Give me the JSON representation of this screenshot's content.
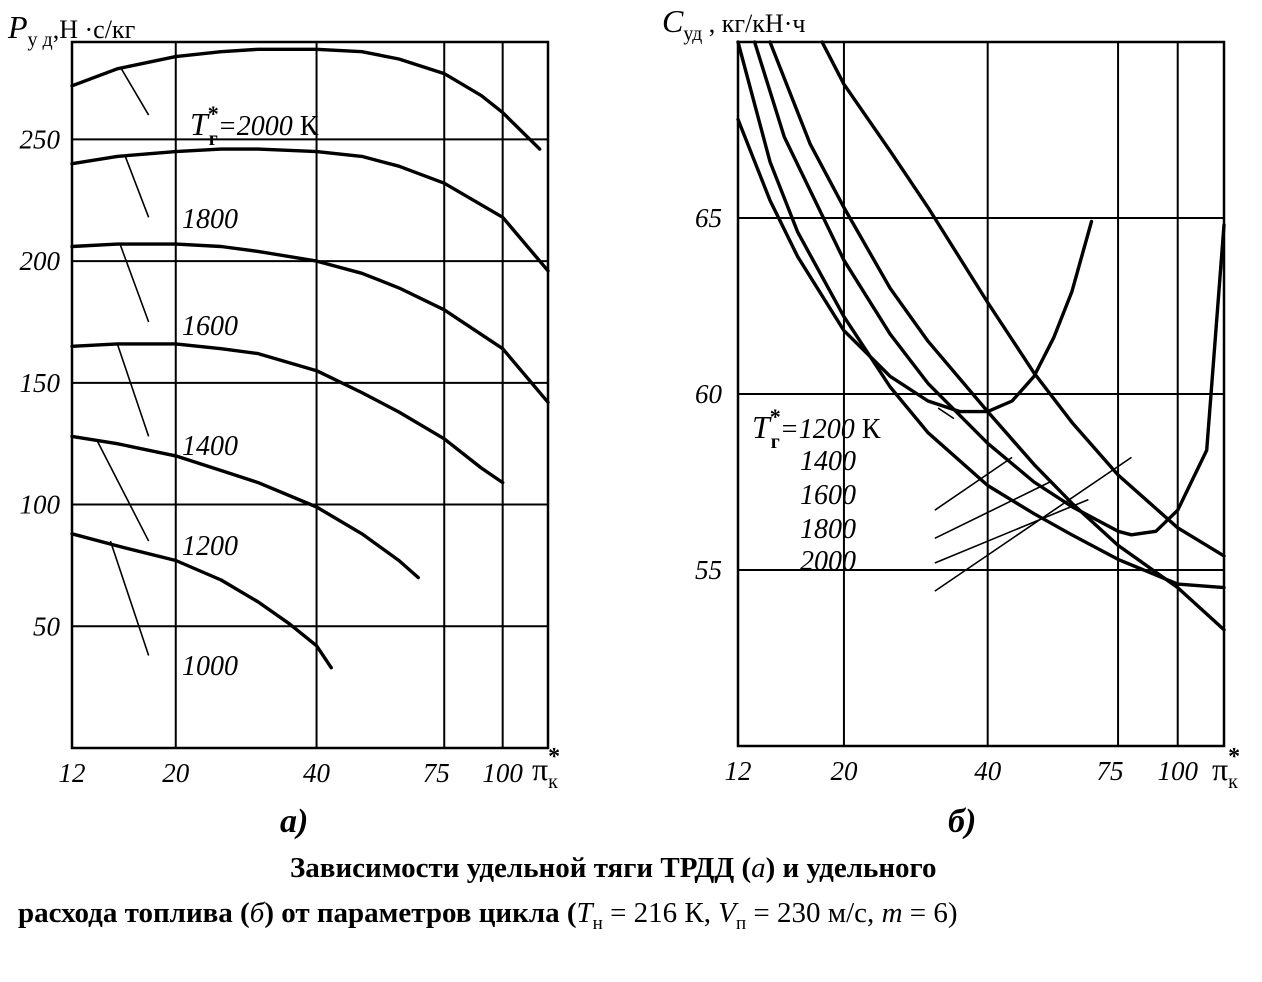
{
  "chart_data": [
    {
      "type": "line",
      "panel_label": "а)",
      "ylabel": {
        "symbol": "P",
        "subscript": "у д",
        "unit": ",Н ·с/кг"
      },
      "xlabel": {
        "symbol": "π",
        "superscript": "*",
        "subscript": "к"
      },
      "xscale": "log",
      "xlim": [
        12,
        125
      ],
      "ylim": [
        0,
        290
      ],
      "x_ticks": [
        12,
        20,
        40,
        75,
        100
      ],
      "x_tick_labels": [
        "12",
        "20",
        "40",
        "75",
        "100"
      ],
      "y_ticks": [
        50,
        100,
        150,
        200,
        250
      ],
      "y_tick_labels": [
        "50",
        "100",
        "150",
        "200",
        "250"
      ],
      "grid": true,
      "series": [
        {
          "name": "2000",
          "label_prefix": "T",
          "label_sub": "г",
          "label_sup": "*",
          "label_text": "=2000",
          "label_unit": " К",
          "x": [
            12,
            15,
            20,
            25,
            30,
            40,
            50,
            60,
            75,
            90,
            100,
            120
          ],
          "y": [
            272,
            279,
            284,
            286,
            287,
            287,
            286,
            283,
            277,
            268,
            261,
            246
          ]
        },
        {
          "name": "1800",
          "label_text": "1800",
          "x": [
            12,
            15,
            20,
            25,
            30,
            40,
            50,
            60,
            75,
            100,
            125
          ],
          "y": [
            240,
            243,
            245,
            246,
            246,
            245,
            243,
            239,
            232,
            218,
            196
          ]
        },
        {
          "name": "1600",
          "label_text": "1600",
          "x": [
            12,
            15,
            20,
            25,
            30,
            40,
            50,
            60,
            75,
            100,
            125
          ],
          "y": [
            206,
            207,
            207,
            206,
            204,
            200,
            195,
            189,
            180,
            164,
            142
          ]
        },
        {
          "name": "1400",
          "label_text": "1400",
          "x": [
            12,
            15,
            20,
            25,
            30,
            40,
            50,
            60,
            75,
            90,
            100
          ],
          "y": [
            165,
            166,
            166,
            164,
            162,
            155,
            146,
            138,
            127,
            115,
            109
          ]
        },
        {
          "name": "1200",
          "label_text": "1200",
          "x": [
            12,
            15,
            20,
            25,
            30,
            40,
            50,
            60,
            66
          ],
          "y": [
            128,
            125,
            120,
            114,
            109,
            99,
            88,
            77,
            70
          ]
        },
        {
          "name": "1000",
          "label_text": "1000",
          "x": [
            12,
            15,
            20,
            25,
            30,
            35,
            40,
            43
          ],
          "y": [
            88,
            83,
            77,
            69,
            60,
            51,
            42,
            33
          ]
        }
      ],
      "leaders": [
        {
          "series": "2000",
          "from": [
            15.3,
            279
          ],
          "to": [
            17.5,
            260
          ]
        },
        {
          "series": "1800",
          "from": [
            15.6,
            243
          ],
          "to": [
            17.5,
            218
          ]
        },
        {
          "series": "1600",
          "from": [
            15.2,
            207
          ],
          "to": [
            17.5,
            175
          ]
        },
        {
          "series": "1400",
          "from": [
            15.0,
            166
          ],
          "to": [
            17.5,
            128
          ]
        },
        {
          "series": "1200",
          "from": [
            13.6,
            126
          ],
          "to": [
            17.5,
            85
          ]
        },
        {
          "series": "1000",
          "from": [
            14.5,
            85
          ],
          "to": [
            17.5,
            38
          ]
        }
      ]
    },
    {
      "type": "line",
      "panel_label": "б)",
      "ylabel": {
        "symbol": "C",
        "subscript": "уд",
        "unit": " , кг/кН·ч"
      },
      "xlabel": {
        "symbol": "π",
        "superscript": "*",
        "subscript": "к"
      },
      "xscale": "log",
      "xlim": [
        12,
        125
      ],
      "ylim": [
        50,
        70
      ],
      "x_ticks": [
        12,
        20,
        40,
        75,
        100
      ],
      "x_tick_labels": [
        "12",
        "20",
        "40",
        "75",
        "100"
      ],
      "y_ticks": [
        55,
        60,
        65
      ],
      "y_tick_labels": [
        "55",
        "60",
        "65"
      ],
      "grid": true,
      "series": [
        {
          "name": "1200",
          "label_prefix": "T",
          "label_sub": "г",
          "label_sup": "*",
          "label_text": "=1200",
          "label_unit": " К",
          "x": [
            12,
            14,
            16,
            20,
            25,
            30,
            35,
            40,
            45,
            50,
            55,
            60,
            66
          ],
          "y": [
            67.8,
            65.5,
            63.9,
            61.8,
            60.5,
            59.8,
            59.5,
            59.5,
            59.8,
            60.5,
            61.6,
            62.9,
            64.9
          ]
        },
        {
          "name": "1400",
          "label_text": "1400",
          "x": [
            12,
            14,
            16,
            20,
            25,
            30,
            40,
            50,
            60,
            75,
            100,
            125
          ],
          "y": [
            70,
            66.6,
            64.6,
            62.2,
            60.2,
            58.9,
            57.4,
            56.6,
            56.0,
            55.3,
            54.6,
            54.5
          ]
        },
        {
          "name": "1600",
          "label_text": "1600",
          "x": [
            13,
            15,
            20,
            25,
            30,
            40,
            50,
            60,
            75,
            80,
            90,
            100,
            115,
            125
          ],
          "y": [
            70,
            67.3,
            63.8,
            61.7,
            60.3,
            58.6,
            57.5,
            56.8,
            56.1,
            56.0,
            56.1,
            56.7,
            58.4,
            64.8
          ]
        },
        {
          "name": "1800",
          "label_text": "1800",
          "x": [
            14,
            17,
            20,
            25,
            30,
            40,
            50,
            60,
            75,
            100,
            125
          ],
          "y": [
            70,
            67.1,
            65.3,
            63.0,
            61.5,
            59.5,
            58.0,
            56.9,
            55.7,
            54.5,
            53.3
          ]
        },
        {
          "name": "2000",
          "label_text": "2000",
          "x": [
            18,
            20,
            25,
            30,
            40,
            50,
            60,
            75,
            100,
            125
          ],
          "y": [
            70,
            68.8,
            66.9,
            65.3,
            62.6,
            60.6,
            59.2,
            57.7,
            56.2,
            55.4
          ]
        }
      ],
      "leaders": [
        {
          "series": "1200",
          "from": [
            31.5,
            59.6
          ],
          "to": [
            34,
            59.3
          ]
        },
        {
          "series": "1400",
          "from": [
            31,
            56.7
          ],
          "to": [
            45,
            58.2
          ]
        },
        {
          "series": "1600",
          "from": [
            31,
            55.9
          ],
          "to": [
            54,
            57.5
          ]
        },
        {
          "series": "1800",
          "from": [
            31,
            55.2
          ],
          "to": [
            65,
            57.0
          ]
        },
        {
          "series": "2000",
          "from": [
            31,
            54.4
          ],
          "to": [
            80,
            58.2
          ]
        }
      ]
    }
  ],
  "caption": {
    "line1_a": "Зависимости удельной тяги ТРДД (",
    "line1_a_it": "а",
    "line1_b": ") и удельного",
    "line2_a": "расхода топлива (",
    "line2_a_it": "б",
    "line2_b": ") от параметров цикла (",
    "t_sym": "T",
    "t_sub": "н",
    "t_val": " = 216 К, ",
    "v_sym": "V",
    "v_sub": "п",
    "v_val": " = 230 м/с, ",
    "m_sym": "m",
    "m_val": " = 6)"
  }
}
